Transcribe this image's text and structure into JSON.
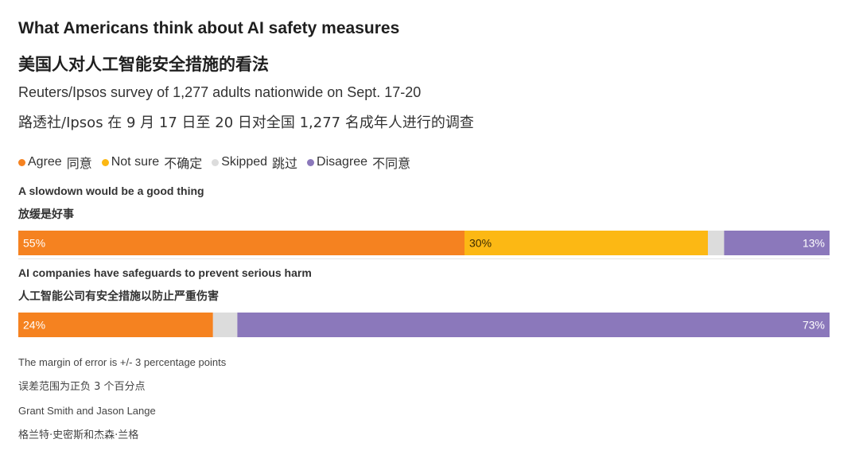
{
  "colors": {
    "agree": "#f58220",
    "not_sure": "#fcb814",
    "skipped": "#dcdcdc",
    "disagree": "#8b78bb"
  },
  "header": {
    "title": "What Americans think about AI safety measures",
    "title_zh": "美国人对人工智能安全措施的看法",
    "subtitle": "Reuters/Ipsos survey of 1,277 adults nationwide on Sept. 17-20",
    "subtitle_zh": "路透社/Ipsos 在 9 月 17 日至 20 日对全国 1,277 名成年人进行的调查"
  },
  "legend": [
    {
      "label": "Agree",
      "label_zh": "同意",
      "color": "#f58220"
    },
    {
      "label": "Not sure",
      "label_zh": "不确定",
      "color": "#fcb814"
    },
    {
      "label": "Skipped",
      "label_zh": "跳过",
      "color": "#dcdcdc"
    },
    {
      "label": "Disagree",
      "label_zh": "不同意",
      "color": "#8b78bb"
    }
  ],
  "chart_data": {
    "type": "bar",
    "stacked": true,
    "orientation": "horizontal",
    "title": "What Americans think about AI safety measures",
    "categories": [
      "A slowdown would be a good thing",
      "AI companies have safeguards to prevent serious harm"
    ],
    "categories_zh": [
      "放缓是好事",
      "人工智能公司有安全措施以防止严重伤害"
    ],
    "series": [
      {
        "name": "Agree",
        "values": [
          55,
          24
        ]
      },
      {
        "name": "Not sure",
        "values": [
          30,
          0
        ]
      },
      {
        "name": "Skipped",
        "values": [
          2,
          3
        ]
      },
      {
        "name": "Disagree",
        "values": [
          13,
          73
        ]
      }
    ],
    "value_labels": [
      [
        "55%",
        "30%",
        "",
        "13%"
      ],
      [
        "24%",
        "",
        "",
        "73%"
      ]
    ],
    "xlim": [
      0,
      100
    ]
  },
  "footer": {
    "margin_note": "The margin of error is +/- 3 percentage points",
    "margin_note_zh": "误差范围为正负 3 个百分点",
    "credit": "Grant Smith and Jason Lange",
    "credit_zh": "格兰特·史密斯和杰森·兰格"
  }
}
